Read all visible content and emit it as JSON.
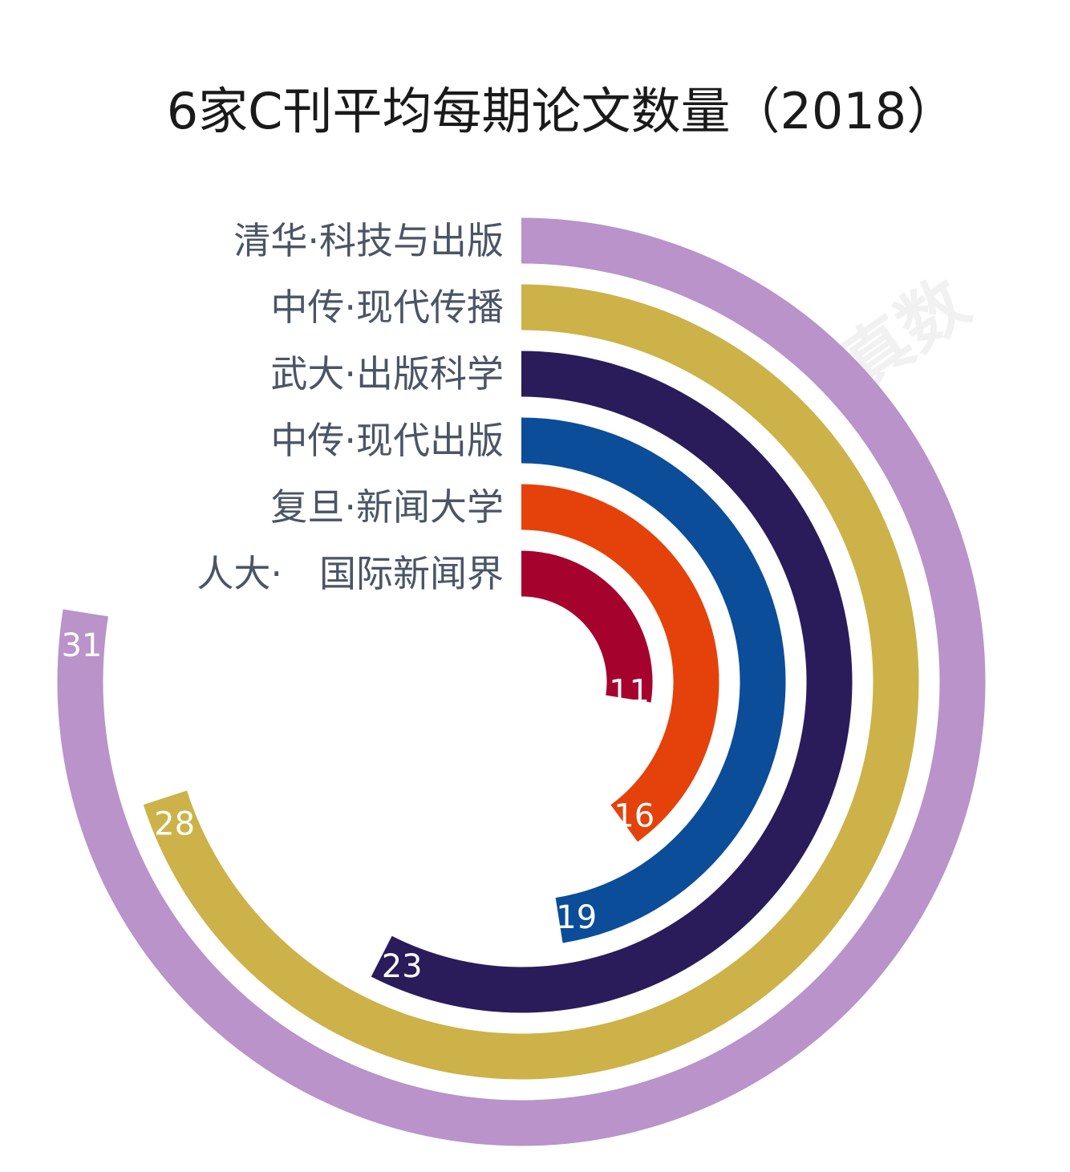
{
  "chart_data": {
    "type": "radial-bar",
    "title": "6家C刊平均每期论文数量（2018）",
    "categories": [
      "清华·科技与出版",
      "中传·现代传播",
      "武大·出版科学",
      "中传·现代出版",
      "复旦·新闻大学",
      "人大·　国际新闻界"
    ],
    "values": [
      31,
      28,
      23,
      19,
      16,
      11
    ],
    "colors": [
      "#b993c9",
      "#ccb249",
      "#2a1c5a",
      "#0b4d99",
      "#e4420a",
      "#a5022e"
    ],
    "watermark": "真数",
    "full_circle_value": 40
  }
}
